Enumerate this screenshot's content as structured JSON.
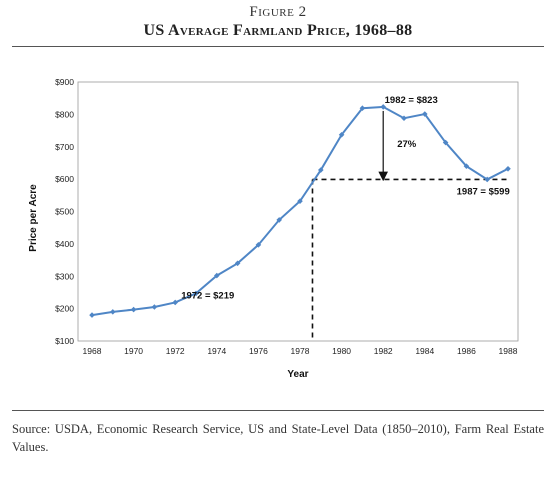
{
  "figure_label": "Figure 2",
  "figure_title": "US Average Farmland Price, 1968–88",
  "source_note": "Source: USDA, Economic Research Service, US and State-Level Data (1850–2010), Farm Real Estate Values.",
  "chart_data": {
    "type": "line",
    "title": "",
    "xlabel": "Year",
    "ylabel": "Price per Acre",
    "x": [
      1968,
      1969,
      1970,
      1971,
      1972,
      1973,
      1974,
      1975,
      1976,
      1977,
      1978,
      1979,
      1980,
      1981,
      1982,
      1983,
      1984,
      1985,
      1986,
      1987,
      1988
    ],
    "series": [
      {
        "values": [
          180,
          190,
          197,
          205,
          219,
          247,
          302,
          340,
          397,
          474,
          532,
          628,
          737,
          819,
          823,
          788,
          801,
          713,
          640,
          599,
          632
        ]
      }
    ],
    "xlim": [
      1968,
      1988
    ],
    "ylim": [
      100,
      900
    ],
    "x_ticks": [
      1968,
      1970,
      1972,
      1974,
      1976,
      1978,
      1980,
      1982,
      1984,
      1986,
      1988
    ],
    "x_tick_labels": [
      "1968",
      "1970",
      "1972",
      "1974",
      "1976",
      "1978",
      "1980",
      "1982",
      "1984",
      "1986",
      "1988"
    ],
    "y_ticks": [
      100,
      200,
      300,
      400,
      500,
      600,
      700,
      800,
      900
    ],
    "y_tick_labels": [
      "$100",
      "$200",
      "$300",
      "$400",
      "$500",
      "$600",
      "$700",
      "$800",
      "$900"
    ],
    "grid": false,
    "line_color": "#4f86c6",
    "annotations": {
      "peak_label": "1982 = $823",
      "trough_label": "1987 = $599",
      "start_label": "1972 = $219",
      "drop_label": "27%"
    },
    "dashed_guide": {
      "x": 1978.6,
      "y": 599,
      "x_end": 1988
    }
  }
}
